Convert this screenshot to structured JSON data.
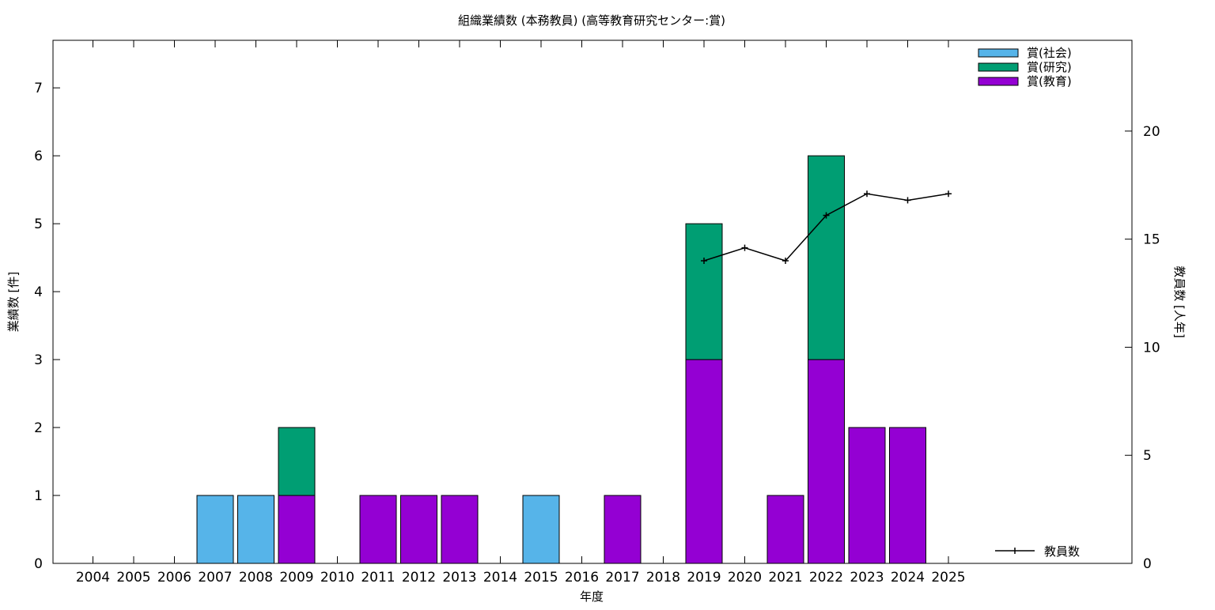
{
  "chart_data": {
    "type": "bar",
    "title": "組織業績数 (本務教員) (高等教育研究センター:賞)",
    "xlabel": "年度",
    "ylabel": "業績数 [件]",
    "y2label": "教員数 [人年]",
    "categories": [
      "2004",
      "2005",
      "2006",
      "2007",
      "2008",
      "2009",
      "2010",
      "2011",
      "2012",
      "2013",
      "2014",
      "2015",
      "2016",
      "2017",
      "2018",
      "2019",
      "2020",
      "2021",
      "2022",
      "2023",
      "2024",
      "2025"
    ],
    "ylim": [
      0,
      7.7
    ],
    "yticks": [
      0,
      1,
      2,
      3,
      4,
      5,
      6,
      7
    ],
    "y2lim": [
      0,
      24.2
    ],
    "y2ticks": [
      0,
      5,
      10,
      15,
      20
    ],
    "stacked": true,
    "series": [
      {
        "name": "賞(教育)",
        "color": "#9400d3",
        "values": [
          0,
          0,
          0,
          0,
          0,
          1,
          0,
          1,
          1,
          1,
          0,
          0,
          0,
          1,
          0,
          3,
          0,
          1,
          3,
          2,
          2,
          0
        ]
      },
      {
        "name": "賞(研究)",
        "color": "#009e73",
        "values": [
          0,
          0,
          0,
          0,
          0,
          1,
          0,
          0,
          0,
          0,
          0,
          0,
          0,
          0,
          0,
          2,
          0,
          0,
          3,
          0,
          0,
          0
        ]
      },
      {
        "name": "賞(社会)",
        "color": "#56b4e9",
        "values": [
          0,
          0,
          0,
          1,
          1,
          0,
          0,
          0,
          0,
          0,
          0,
          1,
          0,
          0,
          0,
          0,
          0,
          0,
          0,
          0,
          0,
          0
        ]
      }
    ],
    "legend_order": [
      "賞(社会)",
      "賞(研究)",
      "賞(教育)"
    ],
    "legend_position": "top-right",
    "line_series": {
      "name": "教員数",
      "axis": "y2",
      "color": "#000000",
      "x": [
        "2019",
        "2020",
        "2021",
        "2022",
        "2023",
        "2024",
        "2025"
      ],
      "values": [
        14.0,
        14.6,
        14.0,
        16.1,
        17.1,
        16.8,
        17.1
      ]
    },
    "line_legend_position": "bottom-right",
    "grid": false
  }
}
